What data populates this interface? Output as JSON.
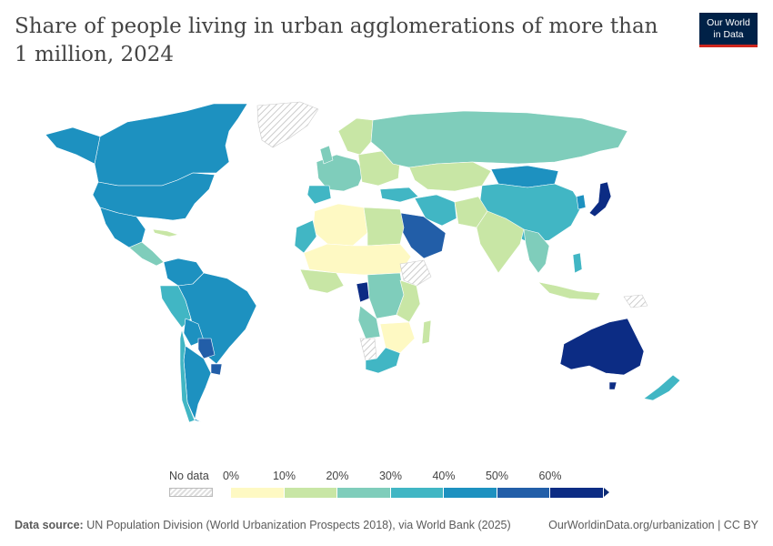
{
  "header": {
    "title": "Share of people living in urban agglomerations of more than 1 million, 2024",
    "logo_line1": "Our World",
    "logo_line2": "in Data"
  },
  "legend": {
    "no_data_label": "No data",
    "no_data_color": "#e9e9e9",
    "bins": [
      {
        "label": "0%",
        "color": "#fef9c3"
      },
      {
        "label": "10%",
        "color": "#c8e6a5"
      },
      {
        "label": "20%",
        "color": "#7fcdbb"
      },
      {
        "label": "30%",
        "color": "#41b6c4"
      },
      {
        "label": "40%",
        "color": "#1d91c0"
      },
      {
        "label": "50%",
        "color": "#225ea8"
      },
      {
        "label": "60%",
        "color": "#0c2c84"
      }
    ]
  },
  "footer": {
    "source_label": "Data source:",
    "source_text": "UN Population Division (World Urbanization Prospects 2018), via World Bank (2025)",
    "link_text": "OurWorldinData.org/urbanization | CC BY"
  }
}
